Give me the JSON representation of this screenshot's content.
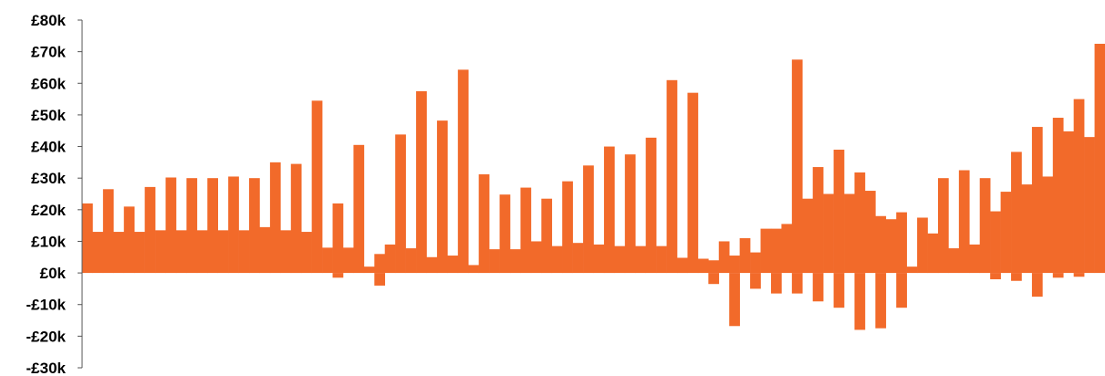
{
  "chart_data": {
    "type": "bar",
    "title": "",
    "xlabel": "",
    "ylabel": "",
    "ylim": [
      -30000,
      80000
    ],
    "yticks": [
      80000,
      70000,
      60000,
      50000,
      40000,
      30000,
      20000,
      10000,
      0,
      -10000,
      -20000,
      -30000
    ],
    "ytick_labels": [
      "£80k",
      "£70k",
      "£60k",
      "£50k",
      "£40k",
      "£30k",
      "£20k",
      "£10k",
      "£0k",
      "-£10k",
      "-£20k",
      "-£30k"
    ],
    "grid": false,
    "legend": "none",
    "bar_color": "#f26a2a",
    "values": [
      22000,
      13000,
      26500,
      13000,
      21000,
      13000,
      27200,
      13500,
      30200,
      13500,
      30000,
      13500,
      30000,
      13500,
      30500,
      13500,
      30000,
      14500,
      35000,
      13500,
      34500,
      13000,
      54500,
      8000,
      22000,
      8000,
      40500,
      2000,
      6000,
      9000,
      43800,
      7800,
      57500,
      5000,
      48200,
      5500,
      64300,
      2500,
      31200,
      7500,
      24800,
      7500,
      27000,
      10000,
      23500,
      8500,
      29000,
      9500,
      34000,
      9000,
      40000,
      8500,
      37500,
      8500,
      42800,
      8500,
      61000,
      4800,
      57000,
      4500,
      4000,
      10000,
      5500,
      11000,
      6500,
      14000,
      14000,
      15500,
      67500,
      23500,
      33500,
      25000,
      39000,
      25000,
      31800,
      26000,
      18000,
      17000,
      19200,
      2000,
      17500,
      12500,
      30000,
      7800,
      32500,
      9000,
      30000,
      19500,
      25700,
      38300,
      28000,
      46200,
      30500,
      49100,
      44800,
      55000,
      43000,
      72500
    ],
    "negatives": [
      0,
      0,
      0,
      0,
      0,
      0,
      0,
      0,
      0,
      0,
      0,
      0,
      0,
      0,
      0,
      0,
      0,
      0,
      0,
      0,
      0,
      0,
      0,
      0,
      -1500,
      0,
      0,
      0,
      -4000,
      0,
      0,
      0,
      0,
      0,
      0,
      0,
      0,
      0,
      0,
      0,
      0,
      0,
      0,
      0,
      0,
      0,
      0,
      0,
      0,
      0,
      0,
      0,
      0,
      0,
      0,
      0,
      0,
      0,
      0,
      0,
      -3500,
      0,
      -16800,
      0,
      -5000,
      0,
      -6500,
      0,
      -6500,
      0,
      -9000,
      0,
      -11000,
      0,
      -18000,
      0,
      -17500,
      0,
      -11000,
      0,
      0,
      0,
      0,
      0,
      0,
      0,
      0,
      -2000,
      0,
      -2500,
      0,
      -7500,
      0,
      -1500,
      0,
      -1200,
      0,
      0
    ]
  }
}
